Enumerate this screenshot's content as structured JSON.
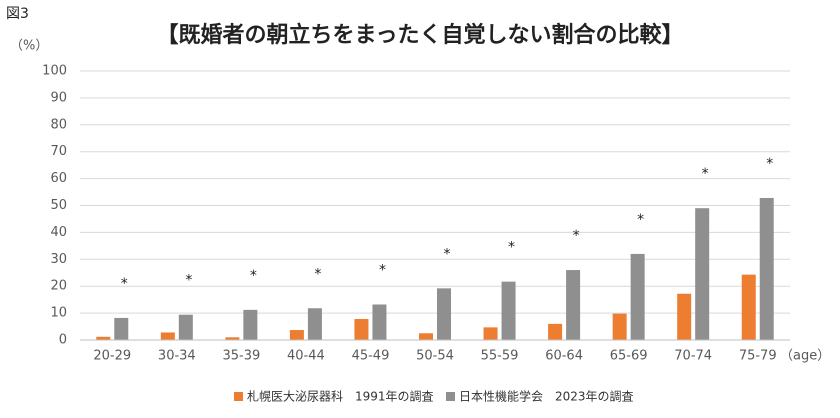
{
  "chart_data": {
    "type": "bar",
    "figure_label": "図3",
    "title": "【既婚者の朝立ちをまったく自覚しない割合の比較】",
    "y_label": "（%）",
    "x_label": "（age）",
    "categories": [
      "20-29",
      "30-34",
      "35-39",
      "40-44",
      "45-49",
      "50-54",
      "55-59",
      "60-64",
      "65-69",
      "70-74",
      "75-79"
    ],
    "series": [
      {
        "name": "札幌医大泌尿器科　1991年の調査",
        "color": "#ED7D31",
        "values": [
          1.2,
          2.8,
          1.0,
          3.7,
          7.8,
          2.5,
          4.7,
          6.0,
          9.8,
          17.2,
          24.3
        ]
      },
      {
        "name": "日本性機能学会　2023年の調査",
        "color": "#8F8F8F",
        "values": [
          8.2,
          9.4,
          11.2,
          11.8,
          13.2,
          19.2,
          21.7,
          26.0,
          32.0,
          49.0,
          52.8
        ]
      }
    ],
    "significance_marks": [
      "*",
      "*",
      "*",
      "*",
      "*",
      "*",
      "*",
      "*",
      "*",
      "*",
      "*"
    ],
    "ylim": [
      0,
      100
    ],
    "yticks": [
      0,
      10,
      20,
      30,
      40,
      50,
      60,
      70,
      80,
      90,
      100
    ],
    "grid": true,
    "legend": "bottom"
  }
}
